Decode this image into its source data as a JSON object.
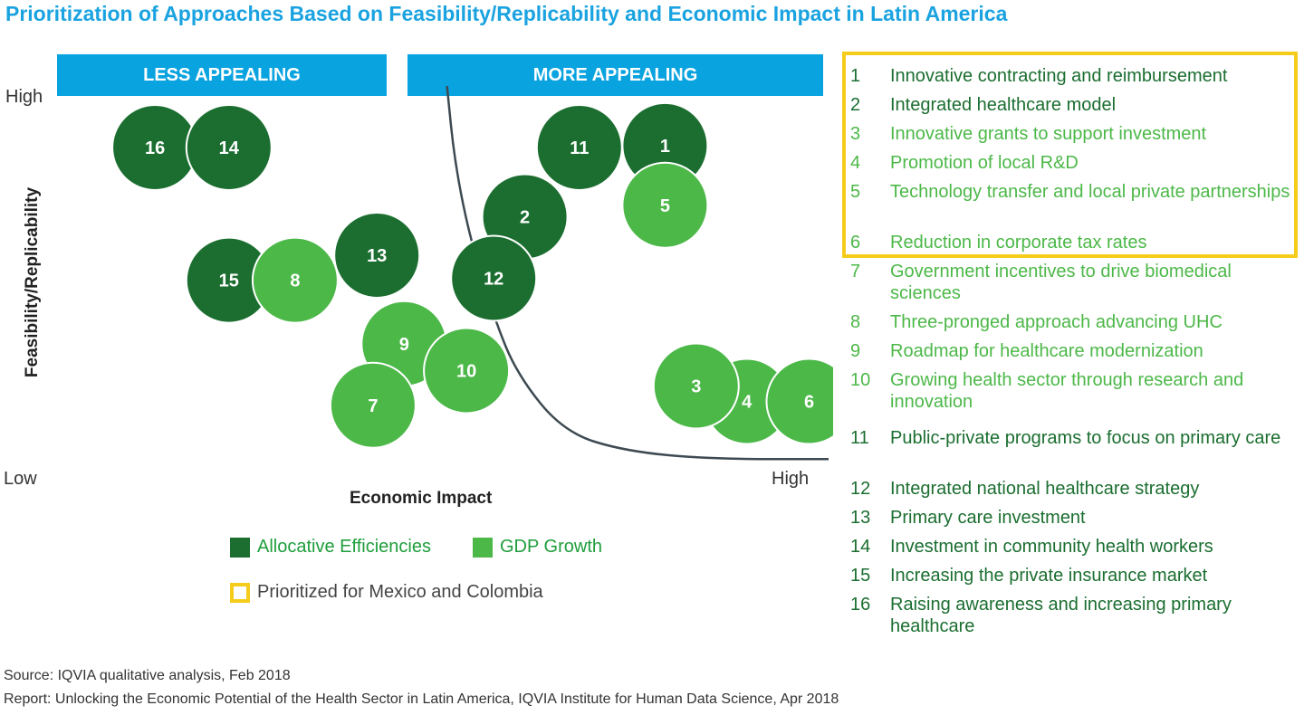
{
  "title": "Prioritization of Approaches Based on Feasibility/Replicability and Economic Impact in Latin America",
  "colors": {
    "allocative": "#1b6e30",
    "gdp": "#4cb848",
    "prioritized": "#f6cc1b",
    "banner": "#09a3e0",
    "title": "#1aa3e0",
    "curve": "#3d4a52"
  },
  "chart_data": {
    "type": "scatter",
    "xlabel": "Economic Impact",
    "ylabel": "Feasibility/Replicability",
    "x_low": "Low",
    "x_high": "High",
    "y_high": "High",
    "y_low": "Low",
    "xlim": [
      0,
      10
    ],
    "ylim": [
      0,
      10
    ],
    "regions": [
      "LESS APPEALING",
      "MORE APPEALING"
    ],
    "curve": [
      [
        5.1,
        10.0
      ],
      [
        5.2,
        8.0
      ],
      [
        5.4,
        6.0
      ],
      [
        5.7,
        4.0
      ],
      [
        6.0,
        2.5
      ],
      [
        6.6,
        1.0
      ],
      [
        7.4,
        0.5
      ],
      [
        8.5,
        0.3
      ],
      [
        10.0,
        0.3
      ]
    ],
    "series": [
      {
        "name": "Allocative Efficiencies",
        "points": [
          {
            "label": "16",
            "x": 1.35,
            "y": 8.4
          },
          {
            "label": "14",
            "x": 2.3,
            "y": 8.4
          },
          {
            "label": "11",
            "x": 6.8,
            "y": 8.4
          },
          {
            "label": "1",
            "x": 7.9,
            "y": 8.45
          },
          {
            "label": "2",
            "x": 6.1,
            "y": 6.6
          },
          {
            "label": "13",
            "x": 4.2,
            "y": 5.6
          },
          {
            "label": "12",
            "x": 5.7,
            "y": 5.0
          },
          {
            "label": "15",
            "x": 2.3,
            "y": 4.95
          }
        ]
      },
      {
        "name": "GDP Growth",
        "points": [
          {
            "label": "5",
            "x": 7.9,
            "y": 6.9
          },
          {
            "label": "8",
            "x": 3.15,
            "y": 4.95
          },
          {
            "label": "9",
            "x": 4.55,
            "y": 3.3
          },
          {
            "label": "10",
            "x": 5.35,
            "y": 2.6
          },
          {
            "label": "7",
            "x": 4.15,
            "y": 1.7
          },
          {
            "label": "4",
            "x": 8.95,
            "y": 1.8
          },
          {
            "label": "3",
            "x": 8.3,
            "y": 2.2
          },
          {
            "label": "6",
            "x": 9.75,
            "y": 1.8
          }
        ]
      }
    ],
    "prioritized": [
      "1",
      "2",
      "3",
      "4",
      "5",
      "6"
    ]
  },
  "legend": {
    "allocative": "Allocative Efficiencies",
    "gdp": "GDP Growth",
    "prioritized": "Prioritized for Mexico and Colombia"
  },
  "approaches": [
    {
      "num": "1",
      "text": "Innovative contracting and reimbursement",
      "category": "allocative"
    },
    {
      "num": "2",
      "text": "Integrated healthcare model",
      "category": "allocative"
    },
    {
      "num": "3",
      "text": "Innovative grants to support investment",
      "category": "gdp"
    },
    {
      "num": "4",
      "text": "Promotion of local R&D",
      "category": "gdp"
    },
    {
      "num": "5",
      "text": "Technology transfer and local private partnerships",
      "category": "gdp"
    },
    {
      "num": "6",
      "text": "Reduction in corporate tax rates",
      "category": "gdp"
    },
    {
      "num": "7",
      "text": "Government incentives to drive biomedical sciences",
      "category": "gdp"
    },
    {
      "num": "8",
      "text": "Three-pronged approach advancing UHC",
      "category": "gdp"
    },
    {
      "num": "9",
      "text": "Roadmap for healthcare modernization",
      "category": "gdp"
    },
    {
      "num": "10",
      "text": "Growing health sector through research and innovation",
      "category": "gdp"
    },
    {
      "num": "11",
      "text": "Public-private programs to focus on primary care",
      "category": "allocative"
    },
    {
      "num": "12",
      "text": "Integrated national healthcare strategy",
      "category": "allocative"
    },
    {
      "num": "13",
      "text": "Primary care investment",
      "category": "allocative"
    },
    {
      "num": "14",
      "text": "Investment in community health workers",
      "category": "allocative"
    },
    {
      "num": "15",
      "text": "Increasing the private insurance market",
      "category": "allocative"
    },
    {
      "num": "16",
      "text": "Raising awareness and increasing primary healthcare",
      "category": "allocative"
    }
  ],
  "source": "Source: IQVIA qualitative analysis, Feb 2018",
  "report": "Report: Unlocking the Economic Potential of the Health Sector in Latin America, IQVIA Institute for Human Data Science, Apr 2018"
}
